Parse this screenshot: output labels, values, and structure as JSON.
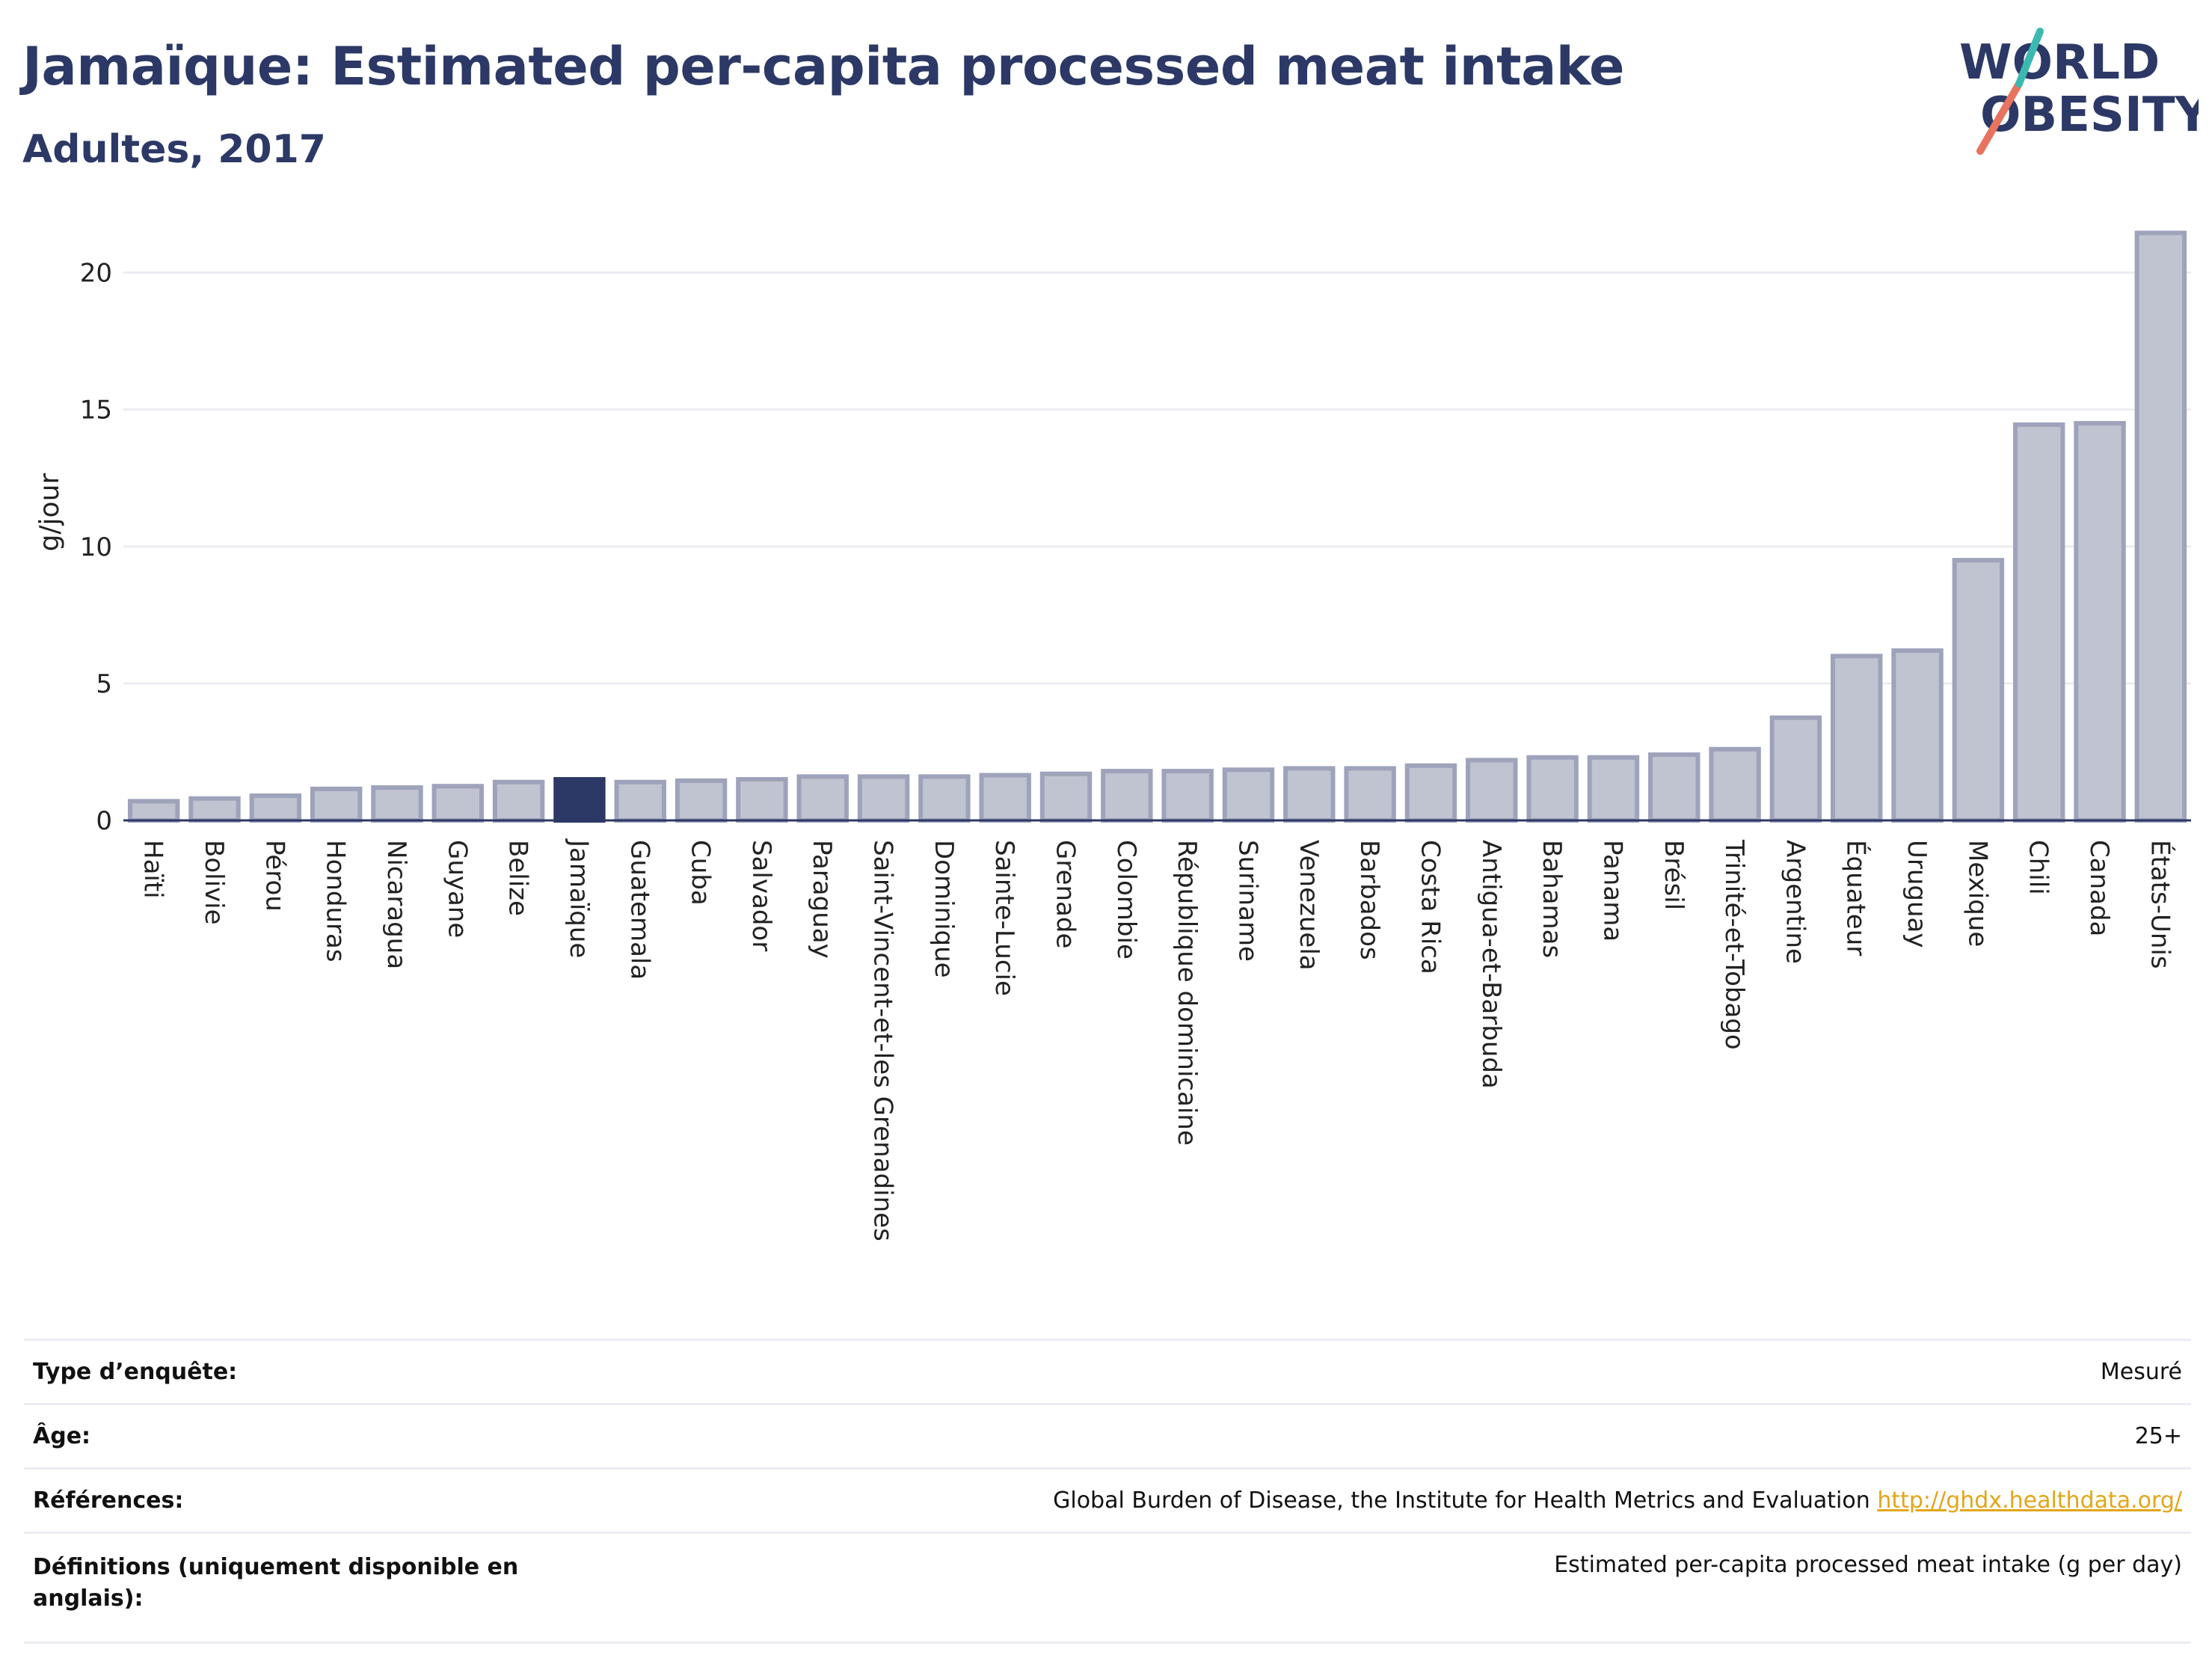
{
  "header": {
    "title": "Jamaïque: Estimated per-capita processed meat intake",
    "subtitle": "Adultes, 2017"
  },
  "logo": {
    "line1": "WORLD",
    "line2": "OBESITY",
    "text_color": "#2c3966",
    "slash_colors": [
      "#e8735f",
      "#3bb9b0"
    ]
  },
  "chart_data": {
    "type": "bar",
    "ylabel": "g/jour",
    "ylim": [
      0,
      22.5
    ],
    "yticks": [
      0,
      5,
      10,
      15,
      20
    ],
    "grid": true,
    "highlight": "Jamaïque",
    "colors": {
      "bar": "#c0c3d0",
      "bar_border": "#9ea3bb",
      "highlight": "#2c3966",
      "grid": "#ececf2"
    },
    "categories": [
      "Haïti",
      "Bolivie",
      "Pérou",
      "Honduras",
      "Nicaragua",
      "Guyane",
      "Belize",
      "Jamaïque",
      "Guatemala",
      "Cuba",
      "Salvador",
      "Paraguay",
      "Saint-Vincent-et-les Grenadines",
      "Dominique",
      "Sainte-Lucie",
      "Grenade",
      "Colombie",
      "République dominicaine",
      "Suriname",
      "Venezuela",
      "Barbados",
      "Costa Rica",
      "Antigua-et-Barbuda",
      "Bahamas",
      "Panama",
      "Brésil",
      "Trinité-et-Tobago",
      "Argentine",
      "Équateur",
      "Uruguay",
      "Mexique",
      "Chili",
      "Canada",
      "États-Unis"
    ],
    "values": [
      0.7,
      0.8,
      0.9,
      1.15,
      1.2,
      1.25,
      1.4,
      1.5,
      1.4,
      1.45,
      1.5,
      1.6,
      1.6,
      1.6,
      1.65,
      1.7,
      1.8,
      1.8,
      1.85,
      1.9,
      1.9,
      2.0,
      2.2,
      2.3,
      2.3,
      2.4,
      2.6,
      3.75,
      6.0,
      6.2,
      9.5,
      14.45,
      14.5,
      21.45
    ]
  },
  "info": [
    {
      "key": "Type d’enquête:",
      "value": "Mesuré"
    },
    {
      "key": "Âge:",
      "value": "25+"
    },
    {
      "key": "Références:",
      "value": "Global Burden of Disease, the Institute for Health Metrics and Evaluation",
      "link": "http://ghdx.healthdata.org/"
    },
    {
      "key": "Définitions (uniquement disponible en anglais):",
      "value": "Estimated per-capita processed meat intake (g per day)"
    }
  ]
}
